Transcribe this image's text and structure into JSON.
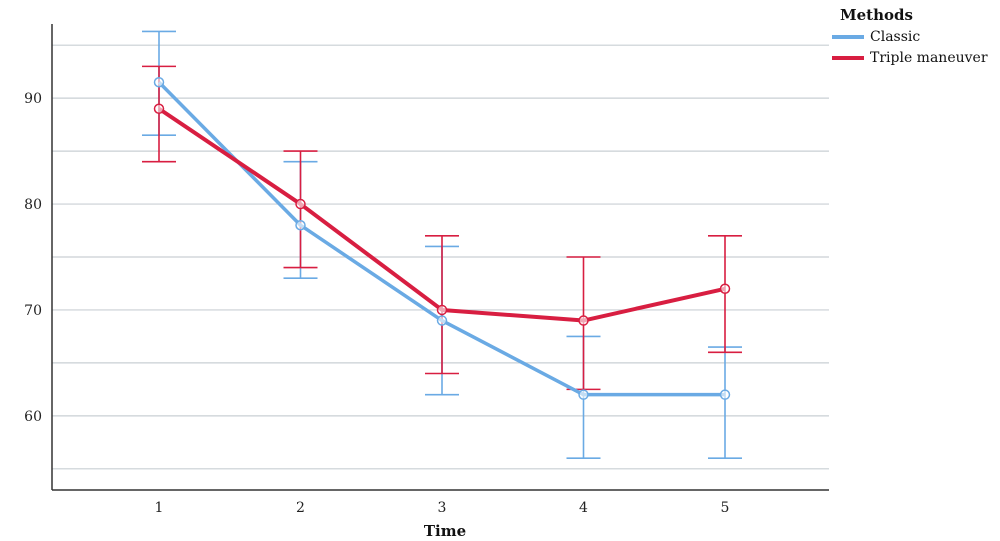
{
  "chart_data": {
    "type": "line",
    "title": "",
    "xlabel": "Time",
    "ylabel": "",
    "x": [
      1,
      2,
      3,
      4,
      5
    ],
    "y_ticks": [
      60,
      70,
      80,
      90
    ],
    "ylim": [
      53,
      97
    ],
    "grid": true,
    "legend": {
      "title": "Methods",
      "position": "top-right"
    },
    "series": [
      {
        "name": "Classic",
        "color": "#6aaae4",
        "values": [
          91.5,
          78.0,
          69.0,
          62.0,
          62.0
        ],
        "error_low": [
          86.5,
          73.0,
          62.0,
          56.0,
          56.0
        ],
        "error_high": [
          96.3,
          84.0,
          76.0,
          67.5,
          66.5
        ]
      },
      {
        "name": "Triple maneuver",
        "color": "#d81e41",
        "values": [
          89.0,
          80.0,
          70.0,
          69.0,
          72.0
        ],
        "error_low": [
          84.0,
          74.0,
          64.0,
          62.5,
          66.0
        ],
        "error_high": [
          93.0,
          85.0,
          77.0,
          75.0,
          77.0
        ]
      }
    ]
  }
}
